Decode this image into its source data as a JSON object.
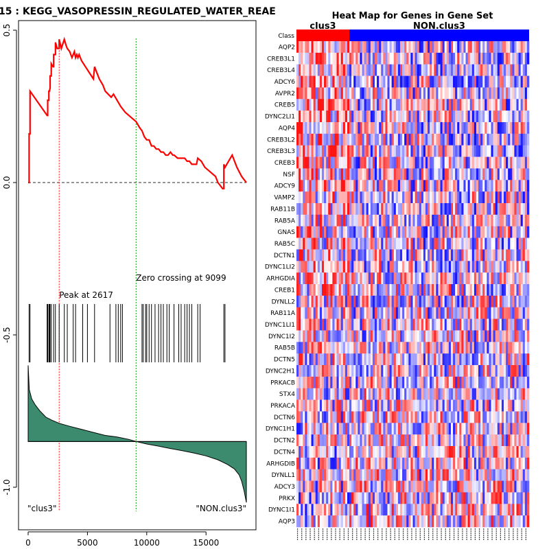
{
  "chart_data": [
    {
      "type": "line",
      "panel": "enrichment-plot",
      "title": "15 : KEGG_VASOPRESSIN_REGULATED_WATER_REAE",
      "xlabel": "",
      "ylabel": "",
      "xlim": [
        0,
        18500
      ],
      "ylim": [
        -1.1,
        0.5
      ],
      "x_ticks": [
        0,
        5000,
        10000,
        15000
      ],
      "x_tick_labels": [
        "0",
        "5000",
        "10000",
        "15000"
      ],
      "y_ticks": [
        0.5,
        0.0,
        -0.5,
        -1.0
      ],
      "y_tick_labels": [
        "0.5",
        "0.0",
        "-0.5",
        "-1.0"
      ],
      "running_es": {
        "x": [
          0,
          80,
          80,
          160,
          160,
          1600,
          1650,
          1650,
          1750,
          1750,
          1800,
          1850,
          1850,
          1950,
          1950,
          2100,
          2150,
          2150,
          2300,
          2300,
          2450,
          2617,
          2617,
          2800,
          3050,
          3200,
          3300,
          3500,
          3700,
          3900,
          4000,
          4100,
          4200,
          4300,
          4500,
          5000,
          5500,
          5600,
          5800,
          6000,
          6300,
          6500,
          7000,
          7200,
          7500,
          7800,
          8200,
          8500,
          8800,
          9099,
          9400,
          9600,
          9800,
          10000,
          10200,
          10400,
          10600,
          10800,
          11000,
          11200,
          11300,
          11400,
          11600,
          11800,
          12000,
          12200,
          12300,
          12600,
          12900,
          13200,
          13400,
          13600,
          13800,
          14000,
          14200,
          14300,
          14600,
          14900,
          15200,
          15500,
          15800,
          16000,
          16200,
          16400,
          16500,
          16500,
          16600,
          17200,
          17600,
          18000,
          18400
        ],
        "y": [
          0.0,
          0.0,
          0.16,
          0.16,
          0.3,
          0.22,
          0.22,
          0.27,
          0.27,
          0.3,
          0.3,
          0.31,
          0.35,
          0.35,
          0.39,
          0.38,
          0.38,
          0.42,
          0.42,
          0.46,
          0.44,
          0.44,
          0.47,
          0.44,
          0.47,
          0.45,
          0.44,
          0.43,
          0.41,
          0.43,
          0.41,
          0.42,
          0.41,
          0.42,
          0.4,
          0.37,
          0.34,
          0.38,
          0.36,
          0.34,
          0.32,
          0.3,
          0.28,
          0.29,
          0.27,
          0.25,
          0.23,
          0.22,
          0.21,
          0.2,
          0.18,
          0.17,
          0.15,
          0.14,
          0.14,
          0.12,
          0.12,
          0.11,
          0.11,
          0.1,
          0.1,
          0.1,
          0.09,
          0.09,
          0.1,
          0.09,
          0.09,
          0.08,
          0.08,
          0.08,
          0.07,
          0.07,
          0.06,
          0.06,
          0.06,
          0.08,
          0.07,
          0.05,
          0.04,
          0.03,
          0.02,
          0.0,
          -0.01,
          -0.02,
          -0.02,
          0.06,
          0.05,
          0.09,
          0.05,
          0.02,
          0.0
        ],
        "color": "#ff0000"
      },
      "baseline_y": 0.0,
      "peak": {
        "x": 2617,
        "label": "Peak at 2617",
        "color": "#ff0000"
      },
      "zero_crossing": {
        "x": 9099,
        "label": "Zero crossing at 9099",
        "color": "#00aa00"
      },
      "gene_hits": [
        80,
        160,
        1600,
        1650,
        1750,
        1800,
        1850,
        1950,
        2150,
        2300,
        2617,
        3050,
        3300,
        3800,
        4000,
        4600,
        5000,
        5600,
        6900,
        7400,
        7600,
        7800,
        7950,
        9600,
        9700,
        9900,
        10000,
        10200,
        10400,
        10700,
        11000,
        11200,
        11400,
        11700,
        11900,
        12300,
        12700,
        12900,
        13200,
        13400,
        13600,
        13800,
        14300,
        14500,
        16500,
        16600
      ],
      "ranked_metric": {
        "x": [
          0,
          100,
          300,
          600,
          1000,
          1500,
          2000,
          2617,
          3500,
          4500,
          5500,
          6500,
          7500,
          8500,
          9099,
          10000,
          11000,
          12000,
          13000,
          14000,
          15000,
          16000,
          16800,
          17400,
          17800,
          18000,
          18200,
          18400
        ],
        "y": [
          -0.6,
          -0.68,
          -0.71,
          -0.73,
          -0.75,
          -0.77,
          -0.78,
          -0.79,
          -0.8,
          -0.81,
          -0.82,
          -0.83,
          -0.835,
          -0.843,
          -0.85,
          -0.858,
          -0.865,
          -0.873,
          -0.88,
          -0.888,
          -0.897,
          -0.91,
          -0.925,
          -0.94,
          -0.96,
          -0.98,
          -1.01,
          -1.05
        ],
        "zero_line": -0.85,
        "fill_color": "#3d8b6e"
      },
      "left_label": "\"clus3\"",
      "right_label": "\"NON.clus3\""
    },
    {
      "type": "heatmap",
      "panel": "gene-set-heatmap",
      "title": "Heat Map for Genes in Gene Set",
      "class_row_label": "Class",
      "classes": [
        {
          "name": "clus3",
          "color": "#ff0000",
          "samples": 25
        },
        {
          "name": "NON.clus3",
          "color": "#0000ff",
          "samples": 85
        }
      ],
      "genes": [
        "AQP2",
        "CREB3L1",
        "CREB3L4",
        "ADCY6",
        "AVPR2",
        "CREB5",
        "DYNC2LI1",
        "AQP4",
        "CREB3L2",
        "CREB3L3",
        "CREB3",
        "NSF",
        "ADCY9",
        "VAMP2",
        "RAB11B",
        "RAB5A",
        "GNAS",
        "RAB5C",
        "DCTN1",
        "DYNC1LI2",
        "ARHGDIA",
        "CREB1",
        "DYNLL2",
        "RAB11A",
        "DYNC1LI1",
        "DYNC1I2",
        "RAB5B",
        "DCTN5",
        "DYNC2H1",
        "PRKACB",
        "STX4",
        "PRKACA",
        "DCTN6",
        "DYNC1H1",
        "DCTN2",
        "DCTN4",
        "ARHGDIB",
        "DYNLL1",
        "ADCY3",
        "PRKX",
        "DYNC1I1",
        "AQP3"
      ],
      "color_scale": {
        "low": "#0000ff",
        "mid": "#ffffff",
        "high": "#ff0000"
      }
    }
  ]
}
